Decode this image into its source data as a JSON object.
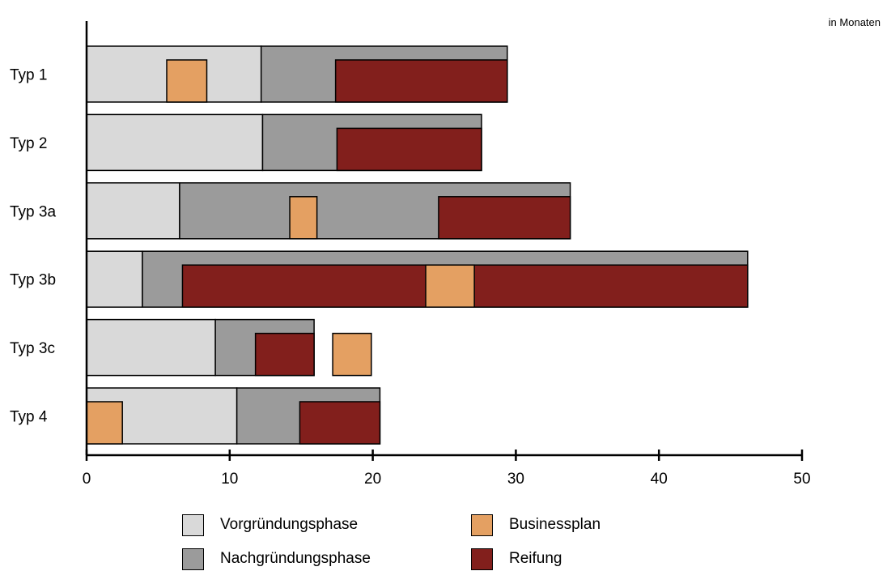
{
  "note": "in Monaten",
  "legend": {
    "vorgruendung": "Vorgründungsphase",
    "nachgruendung": "Nachgründungsphase",
    "businessplan": "Businessplan",
    "reifung": "Reifung"
  },
  "colors": {
    "vorgruendung": "#d9d9d9",
    "nachgruendung": "#9b9b9b",
    "businessplan": "#e4a062",
    "reifung": "#821f1c"
  },
  "chart_data": {
    "type": "bar",
    "orientation": "horizontal",
    "title": "",
    "xlabel": "",
    "ylabel": "",
    "xlim": [
      0,
      50
    ],
    "xticks": [
      0,
      10,
      20,
      30,
      40,
      50
    ],
    "grid": false,
    "legend_position": "bottom",
    "categories": [
      "Typ 1",
      "Typ 2",
      "Typ 3a",
      "Typ 3b",
      "Typ 3c",
      "Typ 4"
    ],
    "series": [
      {
        "key": "vorgruendung",
        "name": "Vorgründungsphase",
        "ranges": [
          [
            0,
            12.2
          ],
          [
            0,
            12.3
          ],
          [
            0,
            6.5
          ],
          [
            0,
            3.9
          ],
          [
            0,
            9.0
          ],
          [
            0,
            10.5
          ]
        ]
      },
      {
        "key": "nachgruendung",
        "name": "Nachgründungsphase",
        "ranges": [
          [
            12.2,
            29.4
          ],
          [
            12.3,
            27.6
          ],
          [
            6.5,
            33.8
          ],
          [
            3.9,
            46.2
          ],
          [
            9.0,
            15.9
          ],
          [
            10.5,
            20.5
          ]
        ]
      },
      {
        "key": "reifung",
        "name": "Reifung",
        "ranges": [
          [
            17.4,
            29.4
          ],
          [
            17.5,
            27.6
          ],
          [
            24.6,
            33.8
          ],
          [
            6.7,
            46.2
          ],
          [
            11.8,
            15.9
          ],
          [
            14.9,
            20.5
          ]
        ]
      },
      {
        "key": "businessplan",
        "name": "Businessplan",
        "ranges": [
          [
            5.6,
            8.4
          ],
          null,
          [
            14.2,
            16.1
          ],
          [
            23.7,
            27.1
          ],
          [
            17.2,
            19.9
          ],
          [
            0,
            2.5
          ]
        ]
      }
    ]
  }
}
